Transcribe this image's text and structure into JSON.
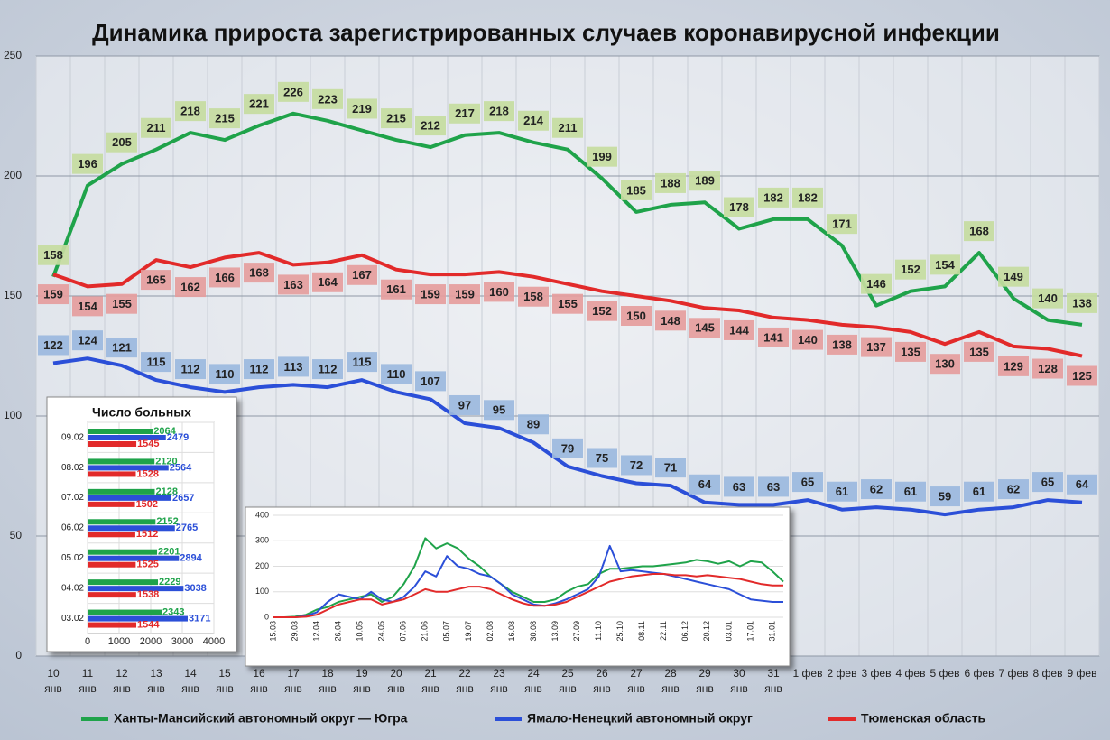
{
  "chart_data": [
    {
      "type": "line",
      "title": "Динамика прироста зарегистрированных случаев коронавирусной инфекции",
      "categories": [
        [
          "10",
          "янв"
        ],
        [
          "11",
          "янв"
        ],
        [
          "12",
          "янв"
        ],
        [
          "13",
          "янв"
        ],
        [
          "14",
          "янв"
        ],
        [
          "15",
          "янв"
        ],
        [
          "16",
          "янв"
        ],
        [
          "17",
          "янв"
        ],
        [
          "18",
          "янв"
        ],
        [
          "19",
          "янв"
        ],
        [
          "20",
          "янв"
        ],
        [
          "21",
          "янв"
        ],
        [
          "22",
          "янв"
        ],
        [
          "23",
          "янв"
        ],
        [
          "24",
          "янв"
        ],
        [
          "25",
          "янв"
        ],
        [
          "26",
          "янв"
        ],
        [
          "27",
          "янв"
        ],
        [
          "28",
          "янв"
        ],
        [
          "29",
          "янв"
        ],
        [
          "30",
          "янв"
        ],
        [
          "31",
          "янв"
        ],
        [
          "1 фев"
        ],
        [
          "2 фев"
        ],
        [
          "3 фев"
        ],
        [
          "4 фев"
        ],
        [
          "5 фев"
        ],
        [
          "6 фев"
        ],
        [
          "7 фев"
        ],
        [
          "8 фев"
        ],
        [
          "9 фев"
        ]
      ],
      "series": [
        {
          "name": "Ханты-Мансийский автономный округ — Югра",
          "color": "#1fa34a",
          "label_color": "#c5dc9f",
          "values": [
            158,
            196,
            205,
            211,
            218,
            215,
            221,
            226,
            223,
            219,
            215,
            212,
            217,
            218,
            214,
            211,
            199,
            185,
            188,
            189,
            178,
            182,
            182,
            171,
            146,
            152,
            154,
            168,
            149,
            140,
            138
          ]
        },
        {
          "name": "Ямало-Ненецкий автономный округ",
          "color": "#2b4fd8",
          "label_color": "#9bb8de",
          "values": [
            122,
            124,
            121,
            115,
            112,
            110,
            112,
            113,
            112,
            115,
            110,
            107,
            97,
            95,
            89,
            79,
            75,
            72,
            71,
            64,
            63,
            63,
            65,
            61,
            62,
            61,
            59,
            61,
            62,
            65,
            64
          ]
        },
        {
          "name": "Тюменская область",
          "color": "#e22a2a",
          "label_color": "#e59d9d",
          "values": [
            159,
            154,
            155,
            165,
            162,
            166,
            168,
            163,
            164,
            167,
            161,
            159,
            159,
            160,
            158,
            155,
            152,
            150,
            148,
            145,
            144,
            141,
            140,
            138,
            137,
            135,
            130,
            135,
            129,
            128,
            125
          ]
        }
      ],
      "ylim": [
        0,
        250
      ],
      "yticks": [
        0,
        50,
        100,
        150,
        200,
        250
      ],
      "grid": true
    },
    {
      "type": "hbar",
      "title": "Число больных",
      "categories": [
        "09.02",
        "08.02",
        "07.02",
        "06.02",
        "05.02",
        "04.02",
        "03.02"
      ],
      "series": [
        {
          "color": "#1fa34a",
          "values": [
            2064,
            2120,
            2128,
            2152,
            2201,
            2229,
            2343
          ]
        },
        {
          "color": "#2b4fd8",
          "values": [
            2479,
            2564,
            2657,
            2765,
            2894,
            3038,
            3171
          ]
        },
        {
          "color": "#e22a2a",
          "values": [
            1545,
            1528,
            1502,
            1512,
            1525,
            1538,
            1544
          ]
        }
      ],
      "xlim": [
        0,
        4000
      ],
      "xticks": [
        0,
        1000,
        2000,
        3000,
        4000
      ]
    },
    {
      "type": "line",
      "categories": [
        "15.03",
        null,
        "29.03",
        null,
        "12.04",
        null,
        "26.04",
        null,
        "10.05",
        null,
        "24.05",
        null,
        "07.06",
        null,
        "21.06",
        null,
        "05.07",
        null,
        "19.07",
        null,
        "02.08",
        null,
        "16.08",
        null,
        "30.08",
        null,
        "13.09",
        null,
        "27.09",
        null,
        "11.10",
        null,
        "25.10",
        null,
        "08.11",
        null,
        "22.11",
        null,
        "06.12",
        null,
        "20.12",
        null,
        "03.01",
        null,
        "17.01",
        null,
        "31.01",
        null
      ],
      "series": [
        {
          "color": "#1fa34a",
          "values": [
            0,
            0,
            2,
            10,
            30,
            40,
            60,
            70,
            80,
            90,
            60,
            80,
            130,
            200,
            310,
            270,
            290,
            270,
            230,
            200,
            160,
            130,
            100,
            80,
            60,
            60,
            70,
            100,
            120,
            130,
            170,
            190,
            190,
            195,
            200,
            200,
            205,
            210,
            215,
            225,
            220,
            210,
            220,
            200,
            220,
            215,
            180,
            140
          ]
        },
        {
          "color": "#2b4fd8",
          "values": [
            0,
            0,
            0,
            5,
            20,
            60,
            90,
            80,
            70,
            100,
            70,
            60,
            80,
            120,
            180,
            160,
            240,
            200,
            190,
            170,
            160,
            130,
            90,
            70,
            50,
            45,
            55,
            70,
            90,
            110,
            160,
            280,
            180,
            185,
            180,
            175,
            170,
            160,
            150,
            140,
            130,
            120,
            110,
            90,
            70,
            65,
            60,
            60
          ]
        },
        {
          "color": "#e22a2a",
          "values": [
            0,
            0,
            0,
            2,
            10,
            30,
            50,
            60,
            70,
            70,
            50,
            60,
            70,
            90,
            110,
            100,
            100,
            110,
            120,
            120,
            110,
            90,
            70,
            55,
            45,
            45,
            50,
            60,
            80,
            100,
            120,
            140,
            150,
            160,
            165,
            170,
            170,
            165,
            165,
            160,
            165,
            160,
            155,
            150,
            140,
            130,
            125,
            125
          ]
        }
      ],
      "ylim": [
        0,
        400
      ],
      "yticks": [
        0,
        100,
        200,
        300,
        400
      ],
      "grid": true
    }
  ]
}
